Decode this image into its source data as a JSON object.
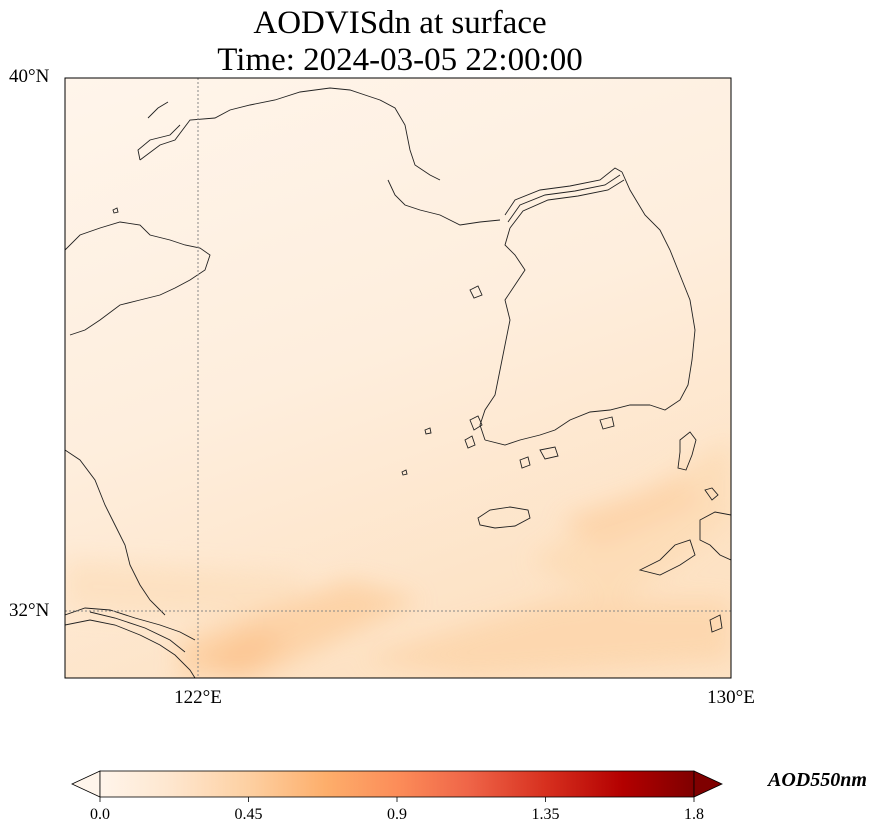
{
  "title_line1": "AODVISdn at surface",
  "title_line2": "Time: 2024-03-05 22:00:00",
  "map": {
    "lon_range": [
      119.95,
      130.0
    ],
    "lat_range": [
      31.0,
      40.0
    ],
    "gridlines": {
      "lon": [
        122,
        130
      ],
      "lat": [
        32,
        40
      ],
      "style": "dotted"
    },
    "lat_labels": [
      "40°N",
      "32°N"
    ],
    "lon_labels": [
      "122°E",
      "130°E"
    ],
    "field_description_colors": {
      "low": "#fff5eb",
      "moderate": "#fdd0a2"
    }
  },
  "colorbar": {
    "label": "AOD550nm",
    "min": 0.0,
    "max": 1.8,
    "ticks": [
      "0.0",
      "0.45",
      "0.9",
      "1.35",
      "1.8"
    ],
    "colormap": "Oranges-Reds",
    "extend": "both",
    "colors": [
      "#fff5eb",
      "#fee6ce",
      "#fdd0a2",
      "#fdae6b",
      "#fd8d3c",
      "#f16913",
      "#d94801",
      "#b30000",
      "#7f0000"
    ]
  }
}
